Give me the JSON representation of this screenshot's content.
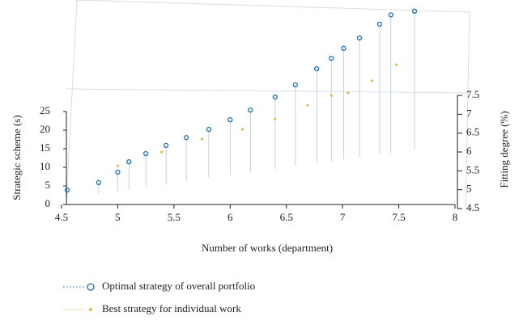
{
  "chart_data": {
    "type": "scatter3d",
    "x_label": "Number of works (department)",
    "y_label": "Strategic scheme (s)",
    "y2_label": "Fitting degree (%)",
    "xlim": [
      4.5,
      8
    ],
    "xticks": [
      4.5,
      5,
      5.5,
      6,
      6.5,
      7,
      7.5,
      8
    ],
    "ylim": [
      0,
      25
    ],
    "yticks": [
      0,
      5,
      10,
      15,
      20,
      25
    ],
    "y2lim": [
      4.5,
      7.5
    ],
    "y2ticks": [
      4.5,
      5,
      5.5,
      6,
      6.5,
      7,
      7.5
    ],
    "series": [
      {
        "name": "Optimal strategy of overall portfolio",
        "color": "#1f6fb5",
        "x": [
          4.55,
          4.83,
          5.0,
          5.1,
          5.25,
          5.43,
          5.61,
          5.81,
          6.0,
          6.18,
          6.4,
          6.58,
          6.77,
          6.9,
          7.01,
          7.15,
          7.33,
          7.43,
          7.64
        ],
        "values": [
          3.9,
          5.9,
          8.7,
          11.5,
          13.7,
          15.9,
          18,
          20.2,
          22.8,
          25.4,
          28.9,
          32.2,
          36.5,
          39.3,
          42,
          44.8,
          48.5,
          51,
          52
        ]
      },
      {
        "name": "Best strategy for individual work",
        "color": "#e8b84a",
        "x": [
          5.0,
          5.39,
          5.75,
          6.11,
          6.4,
          6.69,
          6.9,
          7.05,
          7.26,
          7.48
        ],
        "values": [
          10.4,
          14.1,
          17.6,
          20.2,
          23,
          26.7,
          29.3,
          30,
          33.3,
          37.6
        ]
      }
    ]
  }
}
